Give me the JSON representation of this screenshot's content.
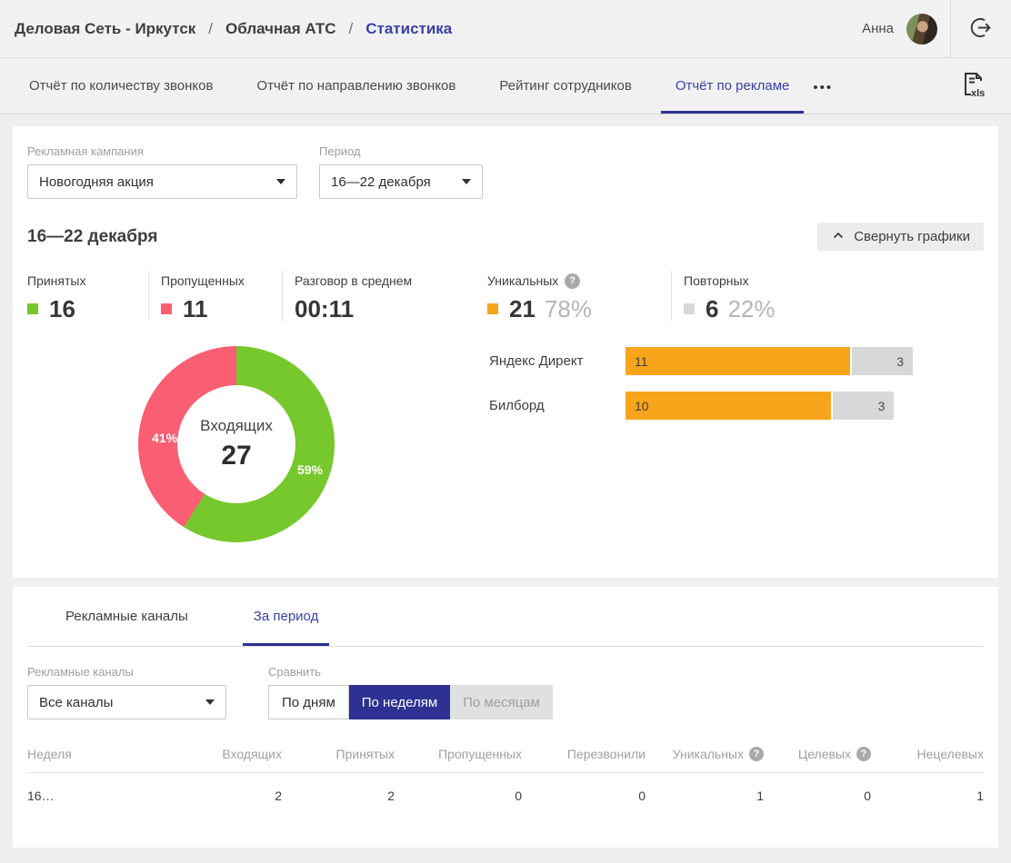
{
  "colors": {
    "accent_text": "#3a41a8",
    "accent_dark": "#2d3192",
    "green": "#76c82d",
    "pink": "#fa5e73",
    "orange": "#f9a51b",
    "gray": "#d8d8d8"
  },
  "header": {
    "breadcrumb": [
      {
        "label": "Деловая Сеть - Иркутск"
      },
      {
        "label": "Облачная АТС"
      },
      {
        "label": "Статистика"
      }
    ],
    "separator": "/",
    "user_name": "Анна"
  },
  "tabs": {
    "items": [
      {
        "label": "Отчёт по количеству звонков"
      },
      {
        "label": "Отчёт по направлению звонков"
      },
      {
        "label": "Рейтинг сотрудников"
      },
      {
        "label": "Отчёт по рекламе"
      }
    ],
    "more_label": "•••"
  },
  "filters": {
    "campaign": {
      "label": "Рекламная кампания",
      "value": "Новогодняя акция"
    },
    "period": {
      "label": "Период",
      "value": "16—22 декабря"
    }
  },
  "summary": {
    "title": "16—22 декабря",
    "collapse_button": "Свернуть графики",
    "stats": [
      {
        "label": "Принятых",
        "value": "16",
        "color": "#76c82d"
      },
      {
        "label": "Пропущенных",
        "value": "11",
        "color": "#fa5e73"
      },
      {
        "label": "Разговор в среднем",
        "value": "00:11"
      },
      {
        "label": "Уникальных",
        "value": "21",
        "percent": "78%",
        "color": "#f9a51b"
      },
      {
        "label": "Повторных",
        "value": "6",
        "percent": "22%",
        "color": "#d8d8d8"
      }
    ]
  },
  "chart_data": [
    {
      "type": "pie",
      "style": "donut",
      "center_label": "Входящих",
      "center_value": "27",
      "slices": [
        {
          "name": "Принятых",
          "value": 59,
          "label": "59%",
          "color": "#76c82d"
        },
        {
          "name": "Пропущенных",
          "value": 41,
          "label": "41%",
          "color": "#fa5e73"
        }
      ]
    },
    {
      "type": "bar",
      "orientation": "horizontal",
      "categories": [
        "Яндекс Директ",
        "Билборд"
      ],
      "series": [
        {
          "name": "Уникальных",
          "values": [
            11,
            10
          ],
          "color": "#f9a51b"
        },
        {
          "name": "Повторных",
          "values": [
            3,
            3
          ],
          "color": "#d8d8d8"
        }
      ],
      "xmax": 14
    }
  ],
  "period_section": {
    "tabs": [
      {
        "label": "Рекламные каналы"
      },
      {
        "label": "За период"
      }
    ],
    "channels_filter": {
      "label": "Рекламные каналы",
      "value": "Все каналы"
    },
    "compare": {
      "label": "Сравнить",
      "options": [
        {
          "label": "По дням",
          "state": "normal"
        },
        {
          "label": "По неделям",
          "state": "active"
        },
        {
          "label": "По месяцам",
          "state": "disabled"
        }
      ]
    },
    "table": {
      "columns": [
        {
          "label": "Неделя"
        },
        {
          "label": "Входящих"
        },
        {
          "label": "Принятых"
        },
        {
          "label": "Пропущенных"
        },
        {
          "label": "Перезвонили"
        },
        {
          "label": "Уникальных",
          "has_help": true
        },
        {
          "label": "Целевых",
          "has_help": true
        },
        {
          "label": "Нецелевых"
        }
      ],
      "rows": [
        [
          "16…",
          "2",
          "2",
          "0",
          "0",
          "1",
          "0",
          "1"
        ]
      ]
    }
  }
}
